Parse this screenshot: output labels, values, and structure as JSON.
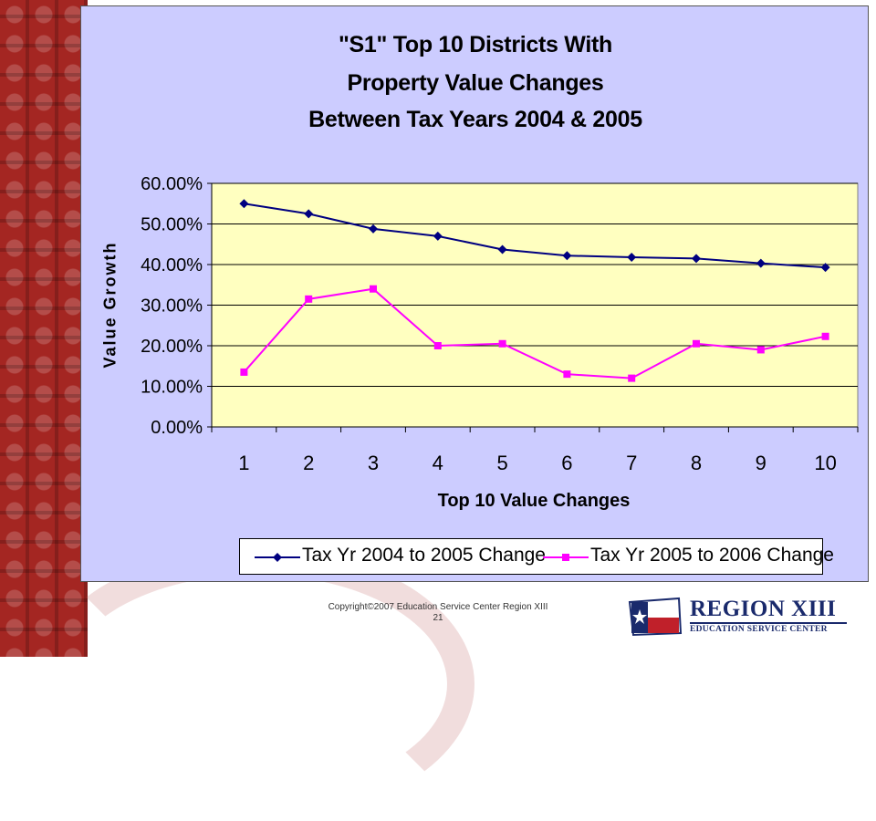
{
  "chart_data": {
    "type": "line",
    "title_lines": [
      "\"S1\" Top 10 Districts With",
      "Property Value Changes",
      "Between Tax Years 2004 & 2005"
    ],
    "xlabel": "Top 10 Value Changes",
    "ylabel": "Value Growth",
    "categories": [
      "1",
      "2",
      "3",
      "4",
      "5",
      "6",
      "7",
      "8",
      "9",
      "10"
    ],
    "ylim": [
      0,
      60
    ],
    "yticks": [
      "0.00%",
      "10.00%",
      "20.00%",
      "30.00%",
      "40.00%",
      "50.00%",
      "60.00%"
    ],
    "grid": true,
    "legend_position": "bottom",
    "series": [
      {
        "name": "Tax Yr 2004 to 2005 Change",
        "color": "#000080",
        "marker": "diamond",
        "values": [
          55.0,
          52.5,
          48.8,
          47.0,
          43.7,
          42.2,
          41.8,
          41.5,
          40.3,
          39.3
        ]
      },
      {
        "name": "Tax Yr 2005 to 2006 Change",
        "color": "#FF00FF",
        "marker": "square",
        "values": [
          13.5,
          31.5,
          34.0,
          20.0,
          20.5,
          13.0,
          12.0,
          20.5,
          19.0,
          22.3
        ]
      }
    ],
    "plot_background": "#FFFFC0",
    "chart_background": "#CCCCFF"
  },
  "footer": {
    "copyright": "Copyright©2007 Education Service Center Region XIII",
    "slide_number": "21"
  },
  "logo": {
    "title": "REGION XIII",
    "subtitle": "EDUCATION SERVICE CENTER"
  },
  "colors": {
    "sidebar_red": "#A42622",
    "background": "#FFFFFF"
  }
}
